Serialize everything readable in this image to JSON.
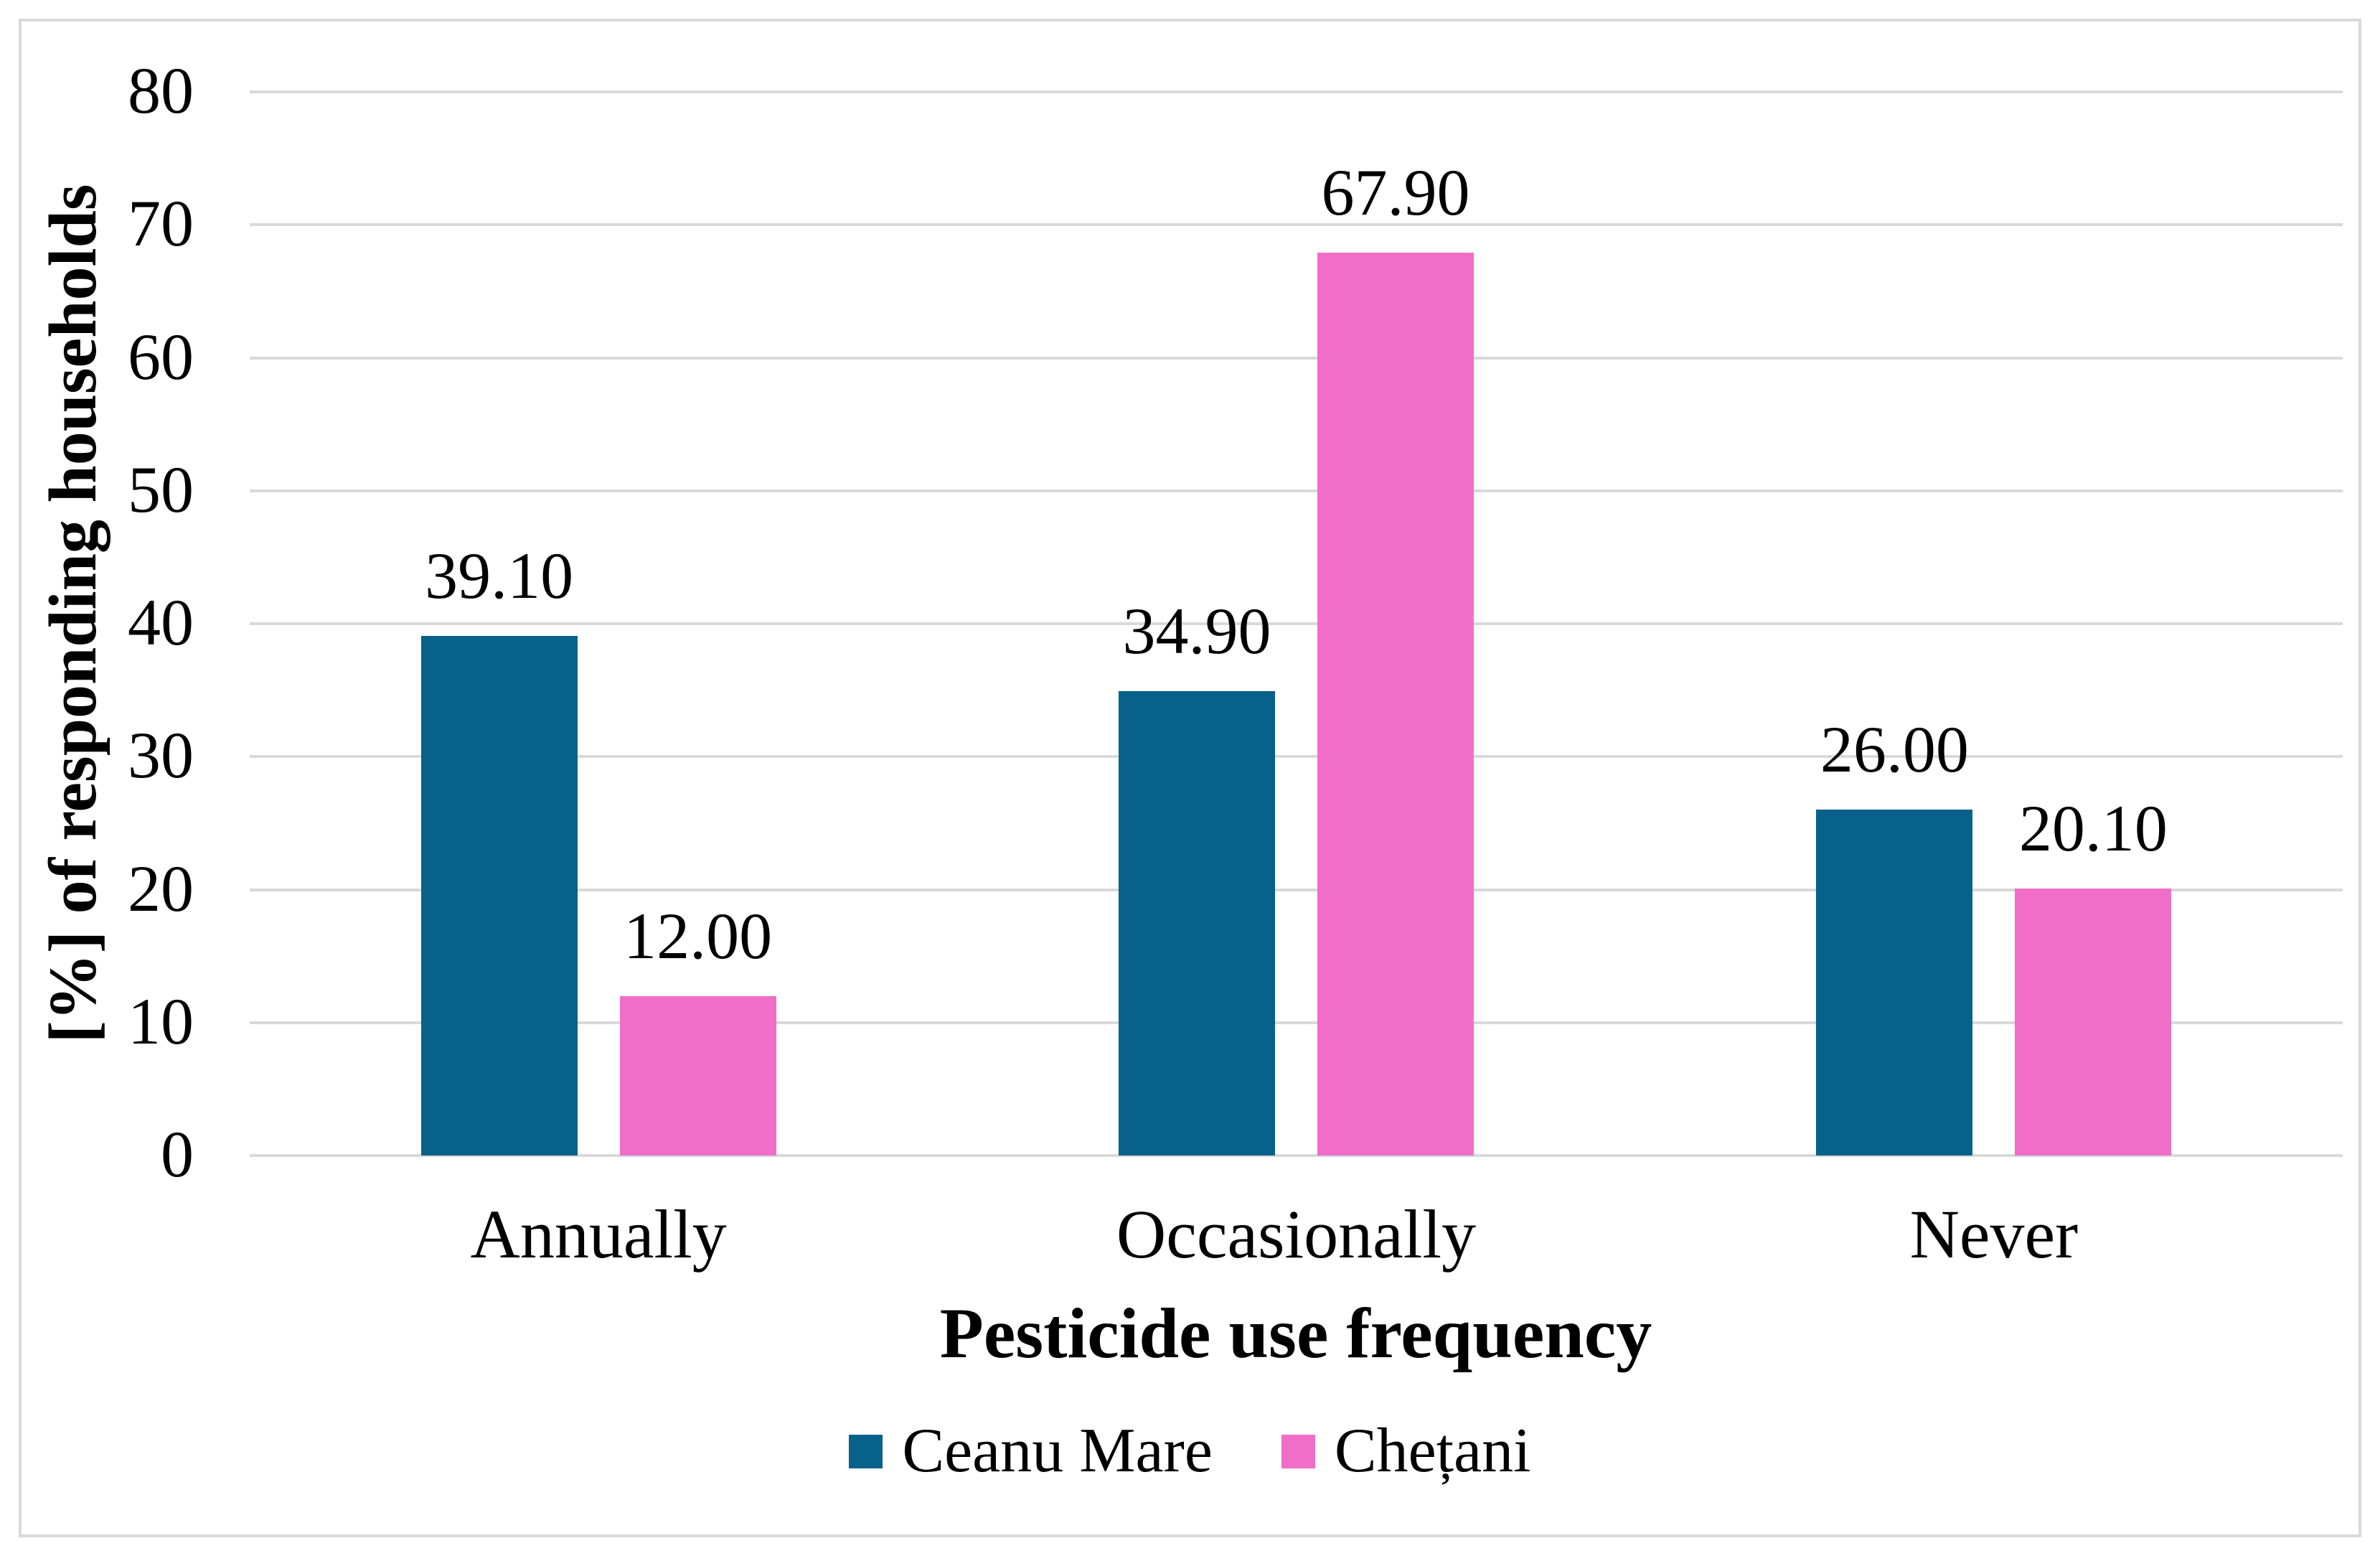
{
  "figure": {
    "background_color": "#ffffff",
    "border_color": "#d9d9d9"
  },
  "chart_data": {
    "type": "bar",
    "title": "",
    "categories": [
      "Annually",
      "Occasionally",
      "Never"
    ],
    "series": [
      {
        "name": "Ceanu Mare",
        "color": "#07618b",
        "values": [
          39.1,
          34.9,
          26.0
        ]
      },
      {
        "name": "Chețani",
        "color": "#f06ec8",
        "values": [
          12.0,
          67.9,
          20.1
        ]
      }
    ],
    "data_labels": [
      [
        "39.10",
        "34.90",
        "26.00"
      ],
      [
        "12.00",
        "67.90",
        "20.10"
      ]
    ],
    "xlabel": "Pesticide use frequency",
    "ylabel": "[%] of responding households",
    "ylim": [
      0,
      80
    ],
    "ytick_interval": 10,
    "yticks": [
      "80",
      "70",
      "60",
      "50",
      "40",
      "30",
      "20",
      "10",
      "0"
    ],
    "grid": "horizontal",
    "gridline_color": "#d9d9d9",
    "legend_position": "bottom"
  }
}
